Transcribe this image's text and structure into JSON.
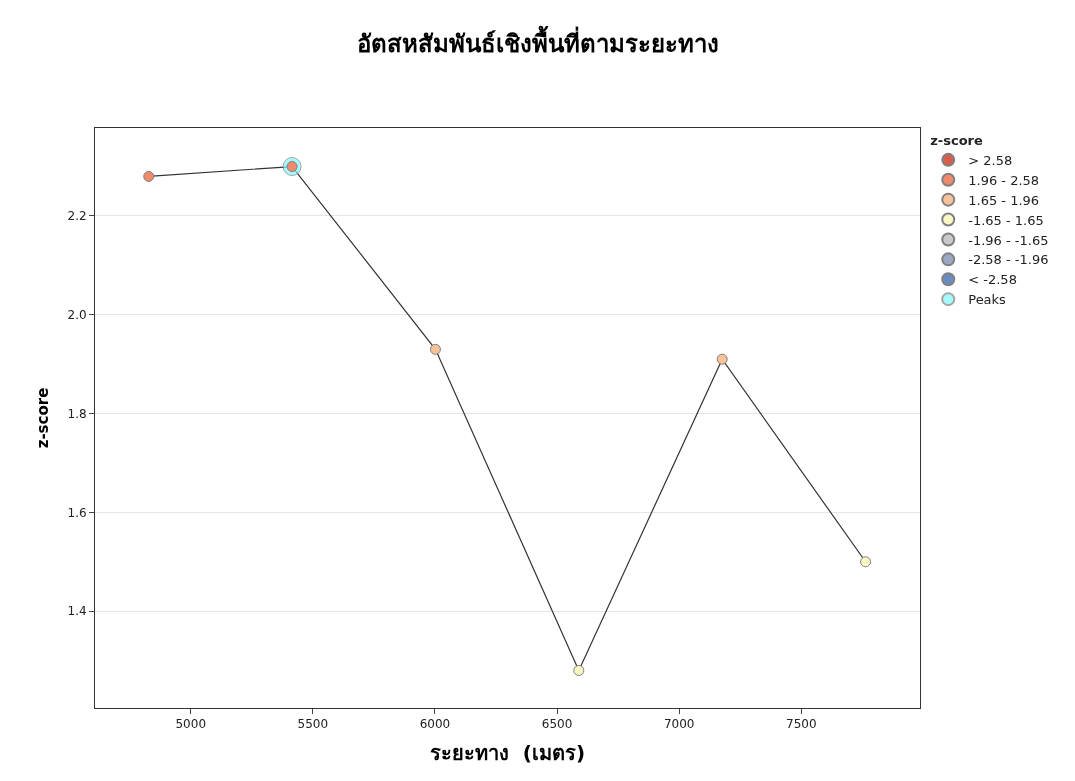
{
  "chart_data": {
    "type": "line",
    "title": "อัตสหสัมพันธ์เชิงพื้นที่ตามระยะทาง",
    "xlabel": "ระยะทาง  (เมตร)",
    "ylabel": "z-score",
    "legend_title": "z-score",
    "x": [
      4828,
      5415,
      6002,
      6589,
      7176,
      7763
    ],
    "series": [
      {
        "color": "#333333",
        "marker": "none",
        "values": [
          2.28,
          2.3,
          1.93,
          1.28,
          1.91,
          1.5
        ]
      },
      {
        "type": "bubble",
        "name": "Peaks",
        "color": "#7ff7fa",
        "values": [
          null,
          2.3,
          null,
          null,
          null,
          null
        ],
        "sizes": [
          null,
          1,
          null,
          null,
          null,
          null
        ]
      },
      {
        "type": "scatter",
        "name": "> 2.58",
        "color": "#d6604d",
        "values": [
          null,
          null,
          null,
          null,
          null,
          null
        ]
      },
      {
        "type": "scatter",
        "name": "1.96 - 2.58",
        "color": "#ef8a6d",
        "values": [
          2.28,
          2.3,
          null,
          null,
          null,
          null
        ]
      },
      {
        "type": "scatter",
        "name": "1.65 - 1.96",
        "color": "#f9c39a",
        "values": [
          null,
          null,
          1.93,
          null,
          1.91,
          null
        ]
      },
      {
        "type": "scatter",
        "name": "-1.65 - 1.65",
        "color": "#fbf7c4",
        "values": [
          null,
          null,
          null,
          1.28,
          null,
          1.5
        ]
      },
      {
        "type": "scatter",
        "name": "-1.96 - -1.65",
        "color": "#c9c9c9",
        "values": [
          null,
          null,
          null,
          null,
          null,
          null
        ]
      },
      {
        "type": "scatter",
        "name": "-2.58 - -1.96",
        "color": "#9aa8c4",
        "values": [
          null,
          null,
          null,
          null,
          null,
          null
        ]
      },
      {
        "type": "scatter",
        "name": "< -2.58",
        "color": "#6b8cc0",
        "values": [
          null,
          null,
          null,
          null,
          null,
          null
        ]
      }
    ],
    "xlim": [
      4608,
      7986
    ],
    "xticks": [
      5000,
      5500,
      6000,
      6500,
      7000,
      7500
    ],
    "ylim": [
      1.204,
      2.378
    ],
    "yticks": [
      {
        "value": 1.4,
        "label": "1.4"
      },
      {
        "value": 1.6,
        "label": "1.6"
      },
      {
        "value": 1.8,
        "label": "1.8"
      },
      {
        "value": 2.0,
        "label": "2.0"
      },
      {
        "value": 2.2,
        "label": "2.2"
      }
    ],
    "grid": "y",
    "legend": "right",
    "marker": "circle",
    "line_style": "solid"
  }
}
